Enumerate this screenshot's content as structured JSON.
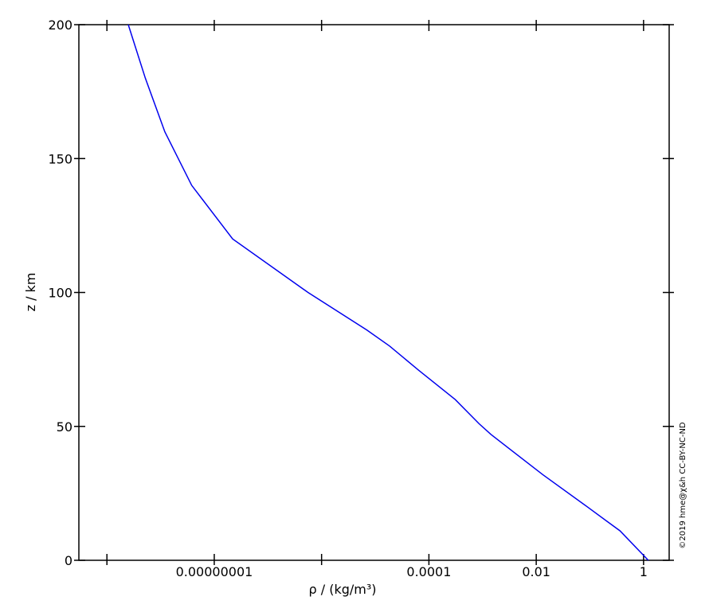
{
  "chart_data": {
    "type": "line",
    "xlabel": "ρ / (kg/m³)",
    "ylabel": "z / km",
    "credit": "©2019 hme@χ&h CC-BY-NC-ND",
    "xscale": "log",
    "xlim": [
      3e-11,
      3
    ],
    "ylim": [
      0,
      200
    ],
    "xticks": [
      {
        "value": 1e-08,
        "label": "0.00000001"
      },
      {
        "value": 0.0001,
        "label": "0.0001"
      },
      0.01,
      1
    ],
    "xticks_unlabeled": [
      1e-10,
      1e-06
    ],
    "yticks": [
      0,
      50,
      100,
      150,
      200
    ],
    "grid": false,
    "series": [
      {
        "color": "#0000ee",
        "x": [
          1.225,
          0.364,
          0.0889,
          0.0132,
          0.00143,
          0.00086,
          0.00031,
          6.4e-05,
          1.85e-05,
          6.96e-06,
          5.6e-07,
          2.2e-08,
          3.8e-09,
          1.2e-09,
          5.2e-10,
          2.5e-10
        ],
        "values": [
          0,
          11,
          20,
          32,
          47,
          51,
          60,
          71,
          80,
          86,
          100,
          120,
          140,
          160,
          180,
          200
        ]
      }
    ]
  }
}
